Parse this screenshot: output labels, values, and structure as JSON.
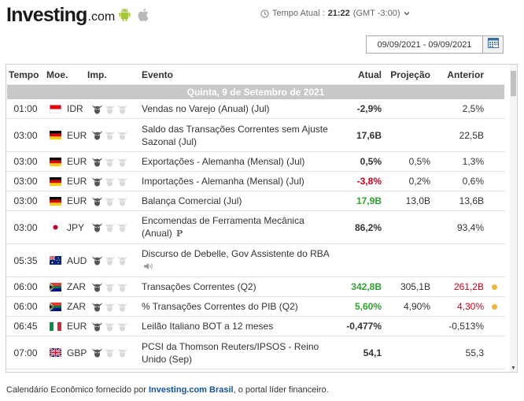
{
  "header": {
    "logo_main": "Investing",
    "logo_suffix": ".com",
    "time_label": "Tempo Atual :",
    "time_value": "21:22",
    "timezone": "(GMT -3:00)",
    "date_range": "09/09/2021 - 09/09/2021"
  },
  "columns": {
    "time": "Tempo",
    "currency": "Moe.",
    "importance": "Imp.",
    "event": "Evento",
    "actual": "Atual",
    "forecast": "Projeção",
    "previous": "Anterior"
  },
  "day_label": "Quinta, 9 de Setembro de 2021",
  "events": [
    {
      "time": "01:00",
      "currency": "IDR",
      "flag": "indonesia",
      "importance": 1,
      "event": "Vendas no Varejo (Anual) (Jul)",
      "actual": "-2,9%",
      "actual_status": "neutral",
      "forecast": "",
      "previous": "2,5%",
      "previous_status": "neutral",
      "dot": false
    },
    {
      "time": "03:00",
      "currency": "EUR",
      "flag": "germany",
      "importance": 1,
      "event": "Saldo das Transações Correntes sem Ajuste Sazonal (Jul)",
      "actual": "17,6B",
      "actual_status": "neutral",
      "forecast": "",
      "previous": "22,5B",
      "previous_status": "neutral",
      "dot": false
    },
    {
      "time": "03:00",
      "currency": "EUR",
      "flag": "germany",
      "importance": 1,
      "event": "Exportações - Alemanha (Mensal) (Jul)",
      "actual": "0,5%",
      "actual_status": "neutral",
      "forecast": "0,5%",
      "previous": "1,3%",
      "previous_status": "neutral",
      "dot": false
    },
    {
      "time": "03:00",
      "currency": "EUR",
      "flag": "germany",
      "importance": 1,
      "event": "Importações - Alemanha (Mensal) (Jul)",
      "actual": "-3,8%",
      "actual_status": "negative",
      "forecast": "0,2%",
      "previous": "0,6%",
      "previous_status": "neutral",
      "dot": false
    },
    {
      "time": "03:00",
      "currency": "EUR",
      "flag": "germany",
      "importance": 1,
      "event": "Balança Comercial (Jul)",
      "actual": "17,9B",
      "actual_status": "positive",
      "forecast": "13,0B",
      "previous": "13,6B",
      "previous_status": "neutral",
      "dot": false
    },
    {
      "time": "03:00",
      "currency": "JPY",
      "flag": "japan",
      "importance": 1,
      "event": "Encomendas de Ferramenta Mecânica (Anual)",
      "event_mark": "P",
      "actual": "86,2%",
      "actual_status": "neutral",
      "forecast": "",
      "previous": "93,4%",
      "previous_status": "neutral",
      "dot": false
    },
    {
      "time": "05:35",
      "currency": "AUD",
      "flag": "australia",
      "importance": 1,
      "event": "Discurso de Debelle, Gov Assistente do RBA",
      "event_icon": "speaker-icon",
      "actual": "",
      "actual_status": "neutral",
      "forecast": "",
      "previous": "",
      "previous_status": "neutral",
      "dot": false
    },
    {
      "time": "06:00",
      "currency": "ZAR",
      "flag": "south-africa",
      "importance": 1,
      "event": "Transações Correntes (Q2)",
      "actual": "342,8B",
      "actual_status": "positive",
      "forecast": "305,1B",
      "previous": "261,2B",
      "previous_status": "negative",
      "dot": true
    },
    {
      "time": "06:00",
      "currency": "ZAR",
      "flag": "south-africa",
      "importance": 1,
      "event": "% Transações Correntes do PIB (Q2)",
      "actual": "5,60%",
      "actual_status": "positive",
      "forecast": "4,90%",
      "previous": "4,30%",
      "previous_status": "negative",
      "dot": true
    },
    {
      "time": "06:45",
      "currency": "EUR",
      "flag": "italy",
      "importance": 1,
      "event": "Leilão Italiano BOT a 12 meses",
      "actual": "-0,477%",
      "actual_status": "neutral",
      "forecast": "",
      "previous": "-0,513%",
      "previous_status": "neutral",
      "dot": false
    },
    {
      "time": "07:00",
      "currency": "GBP",
      "flag": "uk",
      "importance": 1,
      "event": "PCSI da Thomson Reuters/IPSOS - Reino Unido (Sep)",
      "actual": "54,1",
      "actual_status": "neutral",
      "forecast": "",
      "previous": "55,3",
      "previous_status": "neutral",
      "dot": false
    }
  ],
  "footer": {
    "prefix": "Calendário Econômico fornecido por",
    "link": "Investing.com Brasil",
    "suffix": ", o portal líder financeiro."
  },
  "colors": {
    "positive": "#2ea22e",
    "negative": "#d0021b",
    "dot": "#f2b634",
    "day_bar": "#c8c8c8",
    "link": "#1256a0"
  }
}
